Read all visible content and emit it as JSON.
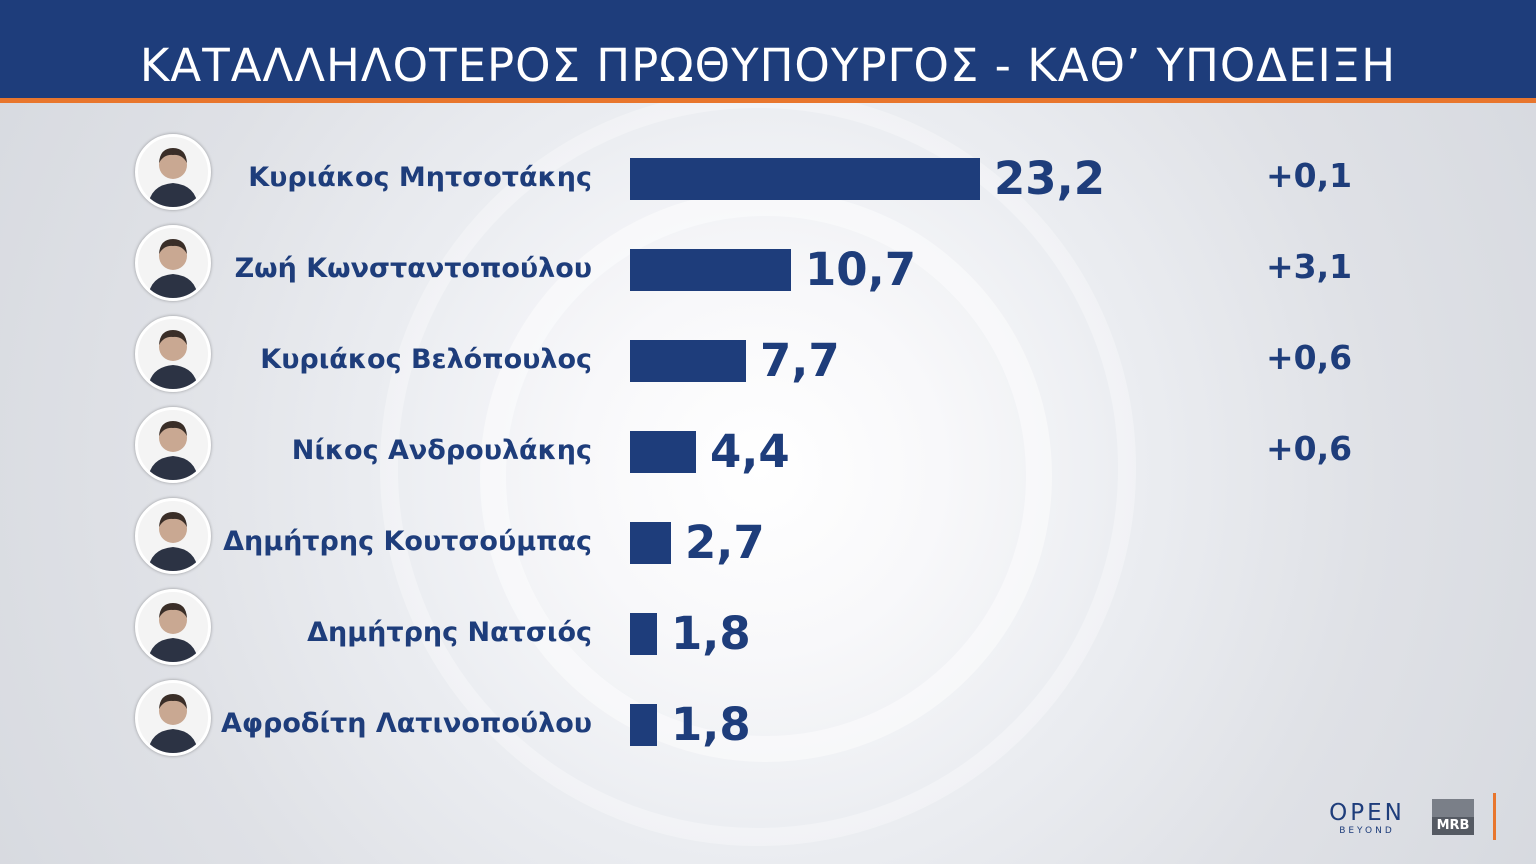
{
  "header": {
    "title": "ΚΑΤΑΛΛΗΛΟΤΕΡΟΣ  ΠΡΩΘΥΠΟΥΡΓΟΣ - ΚΑΘ’ ΥΠΟΔΕΙΞΗ"
  },
  "colors": {
    "header_bg": "#1e3d7b",
    "accent_line": "#e8762d",
    "bar": "#1e3d7b",
    "text": "#1e3d7b"
  },
  "chart_data": {
    "type": "bar",
    "orientation": "horizontal",
    "title": "ΚΑΤΑΛΛΗΛΟΤΕΡΟΣ  ΠΡΩΘΥΠΟΥΡΓΟΣ - ΚΑΘ’ ΥΠΟΔΕΙΞΗ",
    "categories": [
      "Κυριάκος Μητσοτάκης",
      "Ζωή Κωνσταντοπούλου",
      "Κυριάκος Βελόπουλος",
      "Νίκος Ανδρουλάκης",
      "Δημήτρης Κουτσούμπας",
      "Δημήτρης Νατσιός",
      "Αφροδίτη Λατινοπούλου"
    ],
    "values": [
      23.2,
      10.7,
      7.7,
      4.4,
      2.7,
      1.8,
      1.8
    ],
    "value_labels": [
      "23,2",
      "10,7",
      "7,7",
      "4,4",
      "2,7",
      "1,8",
      "1,8"
    ],
    "changes": [
      "+0,1",
      "+3,1",
      "+0,6",
      "+0,6",
      "",
      "",
      ""
    ],
    "grid": false,
    "legend": "none"
  },
  "logos": {
    "open": "OPEN",
    "open_sub": "BEYOND",
    "mrb": "MRB"
  }
}
